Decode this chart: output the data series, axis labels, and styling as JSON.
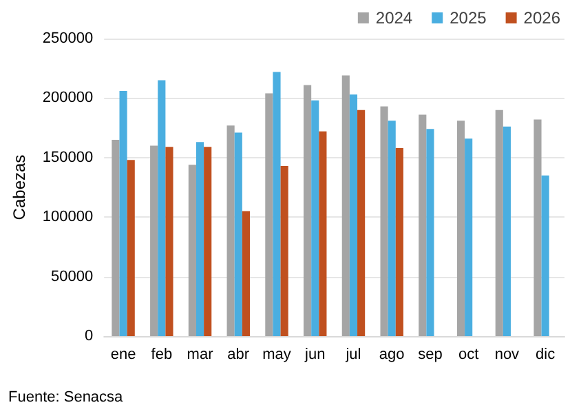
{
  "chart_data": {
    "type": "bar",
    "ylabel": "Cabezas",
    "categories": [
      "ene",
      "feb",
      "mar",
      "abr",
      "may",
      "jun",
      "jul",
      "ago",
      "sep",
      "oct",
      "nov",
      "dic"
    ],
    "series": [
      {
        "name": "2024",
        "color": "#a5a5a5",
        "values": [
          165000,
          160000,
          144000,
          177000,
          204000,
          211000,
          219000,
          193000,
          186000,
          181000,
          190000,
          182000
        ]
      },
      {
        "name": "2025",
        "color": "#4aaee0",
        "values": [
          206000,
          215000,
          163000,
          171000,
          222000,
          198000,
          203000,
          181000,
          174000,
          166000,
          176000,
          135000
        ]
      },
      {
        "name": "2026",
        "color": "#c0501f",
        "values": [
          148000,
          159000,
          159000,
          105000,
          143000,
          172000,
          190000,
          158000,
          null,
          null,
          null,
          null
        ]
      }
    ],
    "ylim": [
      0,
      250000
    ],
    "yticks": [
      0,
      50000,
      100000,
      150000,
      200000,
      250000
    ],
    "grid": "y",
    "legend": "top right",
    "annotations": [
      "Fuente: Senacsa"
    ]
  }
}
